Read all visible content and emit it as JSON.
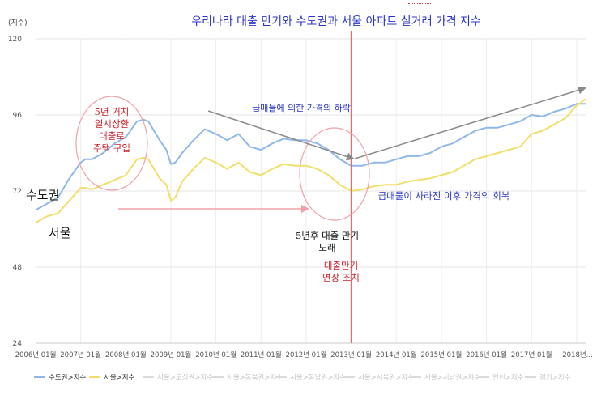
{
  "chart_data": {
    "type": "line",
    "title": "우리나라 대출 만기와 수도권과 서울 아파트 실거래 가격 지수",
    "y_unit": "(지수)",
    "ylim": [
      24,
      120
    ],
    "y_ticks": [
      24,
      48,
      72,
      96,
      120
    ],
    "x_ticks": [
      "2006년 01월",
      "2007년 01월",
      "2008년 01월",
      "2009년 01월",
      "2010년 01월",
      "2011년 01월",
      "2012년 01월",
      "2013년 01월",
      "2014년 01월",
      "2015년 01월",
      "2016년 01월",
      "2017년 01월",
      "2018년..."
    ],
    "x_range": [
      2006.0,
      2018.2
    ],
    "grid": true,
    "legend_position": "bottom",
    "colors": {
      "capital_area": "#8fb8e8",
      "seoul": "#f2df6a",
      "vline": "#e86a6a",
      "arrow": "#8a8a8a",
      "red_text": "#d0202a",
      "blue_text": "#2833c8"
    },
    "series": [
      {
        "name": "수도권>지수",
        "color": "#8fb8e8",
        "x": [
          2006.0,
          2006.25,
          2006.5,
          2006.75,
          2007.0,
          2007.1,
          2007.25,
          2007.5,
          2007.75,
          2008.0,
          2008.25,
          2008.4,
          2008.5,
          2008.75,
          2008.9,
          2009.0,
          2009.1,
          2009.25,
          2009.5,
          2009.75,
          2010.0,
          2010.25,
          2010.5,
          2010.75,
          2011.0,
          2011.25,
          2011.5,
          2011.75,
          2012.0,
          2012.25,
          2012.5,
          2012.75,
          2013.0,
          2013.25,
          2013.5,
          2013.75,
          2014.0,
          2014.25,
          2014.5,
          2014.75,
          2015.0,
          2015.25,
          2015.5,
          2015.75,
          2016.0,
          2016.25,
          2016.5,
          2016.75,
          2017.0,
          2017.25,
          2017.5,
          2017.75,
          2018.0,
          2018.2
        ],
        "values": [
          66,
          68,
          70,
          76,
          81,
          82,
          82,
          84,
          87,
          89,
          94,
          94.5,
          94,
          88,
          85,
          80.5,
          81,
          84,
          88,
          91.5,
          90,
          88,
          90,
          86,
          85,
          87,
          88.5,
          88,
          88,
          87,
          85,
          82,
          80,
          80,
          81,
          81,
          82,
          83,
          83,
          84,
          86,
          87,
          89,
          91,
          92,
          92,
          93,
          94,
          96,
          95.5,
          97,
          98,
          99.5,
          99.5
        ]
      },
      {
        "name": "서울>지수",
        "color": "#f2df6a",
        "x": [
          2006.0,
          2006.25,
          2006.5,
          2006.75,
          2007.0,
          2007.1,
          2007.25,
          2007.5,
          2007.75,
          2008.0,
          2008.25,
          2008.4,
          2008.5,
          2008.75,
          2008.9,
          2009.0,
          2009.1,
          2009.25,
          2009.5,
          2009.75,
          2010.0,
          2010.25,
          2010.5,
          2010.75,
          2011.0,
          2011.25,
          2011.5,
          2011.75,
          2012.0,
          2012.25,
          2012.5,
          2012.75,
          2013.0,
          2013.25,
          2013.5,
          2013.75,
          2014.0,
          2014.25,
          2014.5,
          2014.75,
          2015.0,
          2015.25,
          2015.5,
          2015.75,
          2016.0,
          2016.25,
          2016.5,
          2016.75,
          2017.0,
          2017.25,
          2017.5,
          2017.75,
          2018.0,
          2018.2
        ],
        "values": [
          62,
          64,
          65,
          69,
          73,
          73,
          72.5,
          74,
          75.5,
          77,
          82,
          82.5,
          82,
          76,
          74,
          69,
          70,
          75,
          79,
          82.5,
          81,
          79,
          81,
          78,
          77,
          79,
          80.5,
          80,
          80,
          79,
          77,
          74,
          72,
          72.5,
          73.5,
          74,
          74,
          75,
          75.5,
          76,
          77,
          78,
          80,
          82,
          83,
          84,
          85,
          86,
          90,
          91,
          93,
          95,
          99,
          101
        ]
      }
    ],
    "legend_series": [
      "수도권>지수",
      "서울>지수",
      "서울>도심권>지수",
      "서울>동북권>지수",
      "서울>동남권>지수",
      "서울>서북권>지수",
      "서울>서남권>지수",
      "인천>지수",
      "경기>지수"
    ],
    "vertical_line_x": 2013.0,
    "annotations": {
      "label_capital": "수도권",
      "label_seoul": "서울",
      "circle1_text": "5년 거치\n일시상환\n대출로\n주택 구입",
      "decline_text": "급매물에 의한 가격의 하락",
      "maturity_text": "5년후 대출 만기\n도래",
      "extension_text": "대출만기\n연장 조치",
      "recovery_text": "급매물이 사라진 이후 가격의 회복"
    }
  }
}
